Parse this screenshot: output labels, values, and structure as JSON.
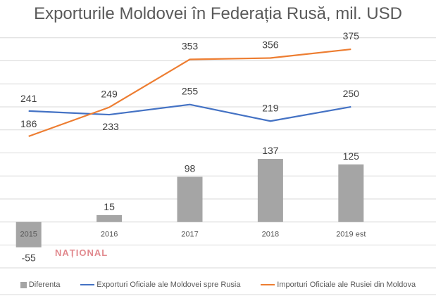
{
  "chart_data": {
    "type": "bar+line",
    "title": "Exporturile Moldovei în Federația Rusă, mil. USD",
    "categories": [
      "2015",
      "2016",
      "2017",
      "2018",
      "2019 est"
    ],
    "series": [
      {
        "name": "Diferenta",
        "type": "bar",
        "color": "#a5a5a5",
        "values": [
          -55,
          15,
          98,
          137,
          125
        ],
        "labels": [
          "-55",
          "15",
          "98",
          "137",
          "125"
        ]
      },
      {
        "name": "Exporturi Oficiale ale Moldovei spre Rusia",
        "type": "line",
        "color": "#4472c4",
        "values": [
          241,
          233,
          255,
          219,
          250
        ],
        "labels": [
          "241",
          "233",
          "255",
          "219",
          "250"
        ]
      },
      {
        "name": "Importuri Oficiale ale Rusiei din Moldova",
        "type": "line",
        "color": "#ed7d31",
        "values": [
          186,
          249,
          353,
          356,
          375
        ],
        "labels": [
          "186",
          "249",
          "353",
          "356",
          "375"
        ]
      }
    ],
    "ylim": [
      -50,
      400
    ],
    "ystep": 50,
    "grid": true,
    "legend": "bottom",
    "xlabel": "",
    "ylabel": ""
  },
  "watermark": "NAȚIONAL"
}
